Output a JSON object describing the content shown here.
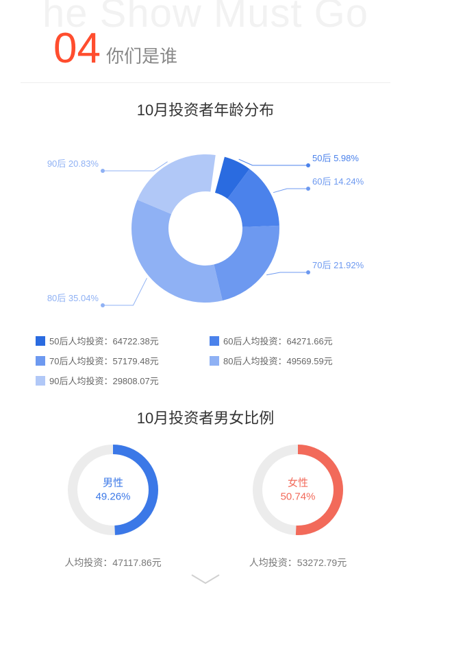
{
  "watermark": "he Show Must Go",
  "section": {
    "number": "04",
    "title": "你们是谁"
  },
  "age_chart": {
    "type": "donut",
    "title": "10月投资者年龄分布",
    "inner_radius": 54,
    "outer_radius": 108,
    "background": "#ffffff",
    "slices": [
      {
        "label": "50后",
        "pct": 5.98,
        "color": "#2a6be0",
        "callout": "50后 5.98%",
        "callout_color": "#4b82eb"
      },
      {
        "label": "60后",
        "pct": 14.24,
        "color": "#4b82eb",
        "callout": "60后 14.24%",
        "callout_color": "#6d99f0"
      },
      {
        "label": "70后",
        "pct": 21.92,
        "color": "#6d99f0",
        "callout": "70后 21.92%",
        "callout_color": "#6d99f0"
      },
      {
        "label": "80后",
        "pct": 35.04,
        "color": "#8fb1f4",
        "callout": "80后 35.04%",
        "callout_color": "#8fb1f4"
      },
      {
        "label": "90后",
        "pct": 20.83,
        "color": "#b1c8f7",
        "callout": "90后 20.83%",
        "callout_color": "#8fb1f4"
      }
    ],
    "start_angle_deg": -75
  },
  "legend_title_suffix": "人均投资：",
  "legend_unit": "元",
  "legend": [
    {
      "label": "50后",
      "value": "64722.38",
      "color": "#2a6be0"
    },
    {
      "label": "60后",
      "value": "64271.66",
      "color": "#4b82eb"
    },
    {
      "label": "70后",
      "value": "57179.48",
      "color": "#6d99f0"
    },
    {
      "label": "80后",
      "value": "49569.59",
      "color": "#8fb1f4"
    },
    {
      "label": "90后",
      "value": "29808.07",
      "color": "#b1c8f7"
    }
  ],
  "gender_chart": {
    "title": "10月投资者男女比例",
    "ring_width": 14,
    "radius": 66,
    "track_color": "#ececec",
    "avg_prefix": "人均投资：",
    "avg_unit": "元",
    "items": [
      {
        "name": "男性",
        "pct": 49.26,
        "color": "#3b78e7",
        "avg": "47117.86"
      },
      {
        "name": "女性",
        "pct": 50.74,
        "color": "#f26a5a",
        "avg": "53272.79"
      }
    ]
  }
}
